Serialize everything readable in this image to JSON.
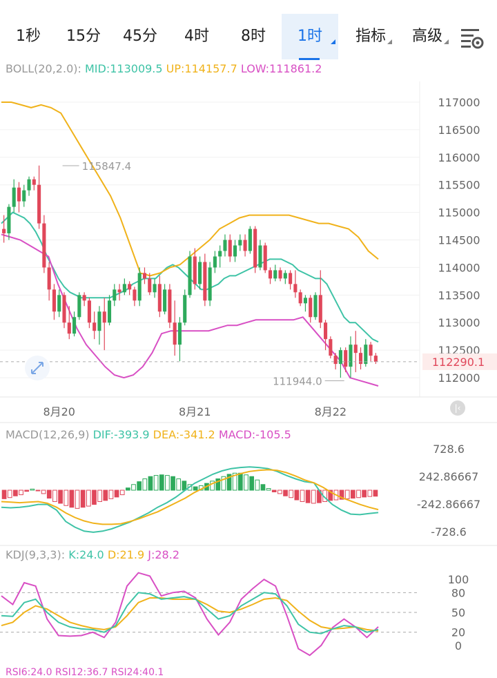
{
  "tabs": [
    {
      "label": "1秒",
      "active": false,
      "dropdown": false
    },
    {
      "label": "15分",
      "active": false,
      "dropdown": false
    },
    {
      "label": "45分",
      "active": false,
      "dropdown": false
    },
    {
      "label": "4时",
      "active": false,
      "dropdown": false
    },
    {
      "label": "8时",
      "active": false,
      "dropdown": false
    },
    {
      "label": "1时",
      "active": true,
      "dropdown": true
    },
    {
      "label": "指标",
      "active": false,
      "dropdown": true
    },
    {
      "label": "高级",
      "active": false,
      "dropdown": true
    }
  ],
  "settings_icon": "chart-settings-icon",
  "colors": {
    "up": "#2eaa5c",
    "down": "#e0475a",
    "mid": "#3ec3a6",
    "upper": "#f0b21a",
    "lower": "#d84fc4",
    "grey": "#999999",
    "accent": "#1a73e8"
  },
  "boll": {
    "name": "BOLL(20,2.0):",
    "mid": "MID:113009.5",
    "up": "UP:114157.7",
    "low": "LOW:111861.2"
  },
  "macd": {
    "name": "MACD(12,26,9)",
    "dif": "DIF:-393.9",
    "dea": "DEA:-341.2",
    "macd": "MACD:-105.5"
  },
  "kdj": {
    "name": "KDJ(9,3,3):",
    "k": "K:24.0",
    "d": "D:21.9",
    "j": "J:28.2"
  },
  "rsi": {
    "text": "RSI6:24.0  RSI12:36.7  RSI24:40.1"
  },
  "chart_data": [
    {
      "type": "candlestick",
      "title": "BOLL(20,2.0)",
      "y_ticks": [
        112000,
        112500,
        113000,
        113500,
        114000,
        114500,
        115000,
        115500,
        116000,
        116500,
        117000
      ],
      "ylim": [
        111650,
        117250
      ],
      "x_labels": [
        {
          "label": "8月20",
          "index": 11
        },
        {
          "label": "8月21",
          "index": 38
        },
        {
          "label": "8月22",
          "index": 65
        }
      ],
      "current_price": "112290.1",
      "current_value": 112290,
      "high_marker": {
        "label": "115847.4",
        "value": 115847.4,
        "index": 7
      },
      "low_marker": {
        "label": "111944.0",
        "value": 111944.0,
        "index": 68
      },
      "candles": [
        [
          114700,
          114950,
          114450,
          114620
        ],
        [
          114620,
          115150,
          114500,
          115100
        ],
        [
          115100,
          115600,
          115000,
          115450
        ],
        [
          115450,
          115550,
          115000,
          115200
        ],
        [
          115200,
          115500,
          115100,
          115400
        ],
        [
          115400,
          115650,
          115300,
          115600
        ],
        [
          115600,
          115650,
          115400,
          115500
        ],
        [
          115500,
          115850,
          114700,
          114800
        ],
        [
          114800,
          114950,
          113900,
          114000
        ],
        [
          114000,
          114100,
          113400,
          113600
        ],
        [
          113600,
          113700,
          113050,
          113200
        ],
        [
          113200,
          113600,
          113100,
          113500
        ],
        [
          113500,
          113550,
          112900,
          113000
        ],
        [
          113000,
          113300,
          112700,
          112800
        ],
        [
          112800,
          113200,
          112750,
          113100
        ],
        [
          113100,
          113550,
          113050,
          113500
        ],
        [
          113500,
          113550,
          113300,
          113400
        ],
        [
          113400,
          113450,
          112900,
          113000
        ],
        [
          113000,
          113200,
          112700,
          112850
        ],
        [
          112850,
          113300,
          112600,
          113200
        ],
        [
          113200,
          113450,
          112500,
          113000
        ],
        [
          113000,
          113500,
          112950,
          113400
        ],
        [
          113400,
          113700,
          113300,
          113600
        ],
        [
          113600,
          113700,
          113400,
          113550
        ],
        [
          113550,
          113800,
          113500,
          113700
        ],
        [
          113700,
          113750,
          113500,
          113600
        ],
        [
          113600,
          113650,
          113300,
          113400
        ],
        [
          113400,
          114000,
          113300,
          113900
        ],
        [
          113900,
          114000,
          113700,
          113800
        ],
        [
          113800,
          113900,
          113500,
          113550
        ],
        [
          113550,
          113800,
          113450,
          113700
        ],
        [
          113700,
          113850,
          113100,
          113200
        ],
        [
          113200,
          113700,
          113150,
          113600
        ],
        [
          113600,
          113700,
          112900,
          113000
        ],
        [
          113000,
          113400,
          112400,
          112600
        ],
        [
          112600,
          113100,
          112300,
          113000
        ],
        [
          113000,
          113600,
          112950,
          113500
        ],
        [
          113500,
          114300,
          113450,
          114200
        ],
        [
          114200,
          114350,
          113600,
          113700
        ],
        [
          113700,
          114200,
          113600,
          114100
        ],
        [
          114100,
          114250,
          113300,
          113400
        ],
        [
          113400,
          114100,
          113300,
          114000
        ],
        [
          114000,
          114300,
          113900,
          114200
        ],
        [
          114200,
          114400,
          114000,
          114300
        ],
        [
          114300,
          114600,
          114200,
          114500
        ],
        [
          114500,
          114600,
          114100,
          114200
        ],
        [
          114200,
          114500,
          114100,
          114400
        ],
        [
          114400,
          114600,
          114300,
          114500
        ],
        [
          114500,
          114600,
          114200,
          114300
        ],
        [
          114300,
          114750,
          114250,
          114700
        ],
        [
          114700,
          114750,
          113900,
          114000
        ],
        [
          114000,
          114500,
          113950,
          114400
        ],
        [
          114400,
          114450,
          113900,
          113950
        ],
        [
          113950,
          114000,
          113700,
          113800
        ],
        [
          113800,
          114050,
          113750,
          113950
        ],
        [
          113950,
          114000,
          113750,
          113800
        ],
        [
          113800,
          113950,
          113700,
          113900
        ],
        [
          113900,
          113950,
          113600,
          113700
        ],
        [
          113700,
          113950,
          113450,
          113550
        ],
        [
          113550,
          113600,
          113300,
          113350
        ],
        [
          113350,
          113500,
          113200,
          113450
        ],
        [
          113450,
          113500,
          113000,
          113100
        ],
        [
          113100,
          113550,
          113050,
          113500
        ],
        [
          113500,
          113950,
          112900,
          113000
        ],
        [
          113000,
          113050,
          112500,
          112700
        ],
        [
          112700,
          112750,
          112350,
          112400
        ],
        [
          112400,
          112450,
          112150,
          112250
        ],
        [
          112250,
          112550,
          112000,
          112500
        ],
        [
          112500,
          112550,
          112100,
          112200
        ],
        [
          112200,
          112750,
          112000,
          112600
        ],
        [
          112600,
          112850,
          112100,
          112450
        ],
        [
          112450,
          112550,
          112150,
          112250
        ],
        [
          112250,
          112700,
          112200,
          112600
        ],
        [
          112600,
          112650,
          112300,
          112400
        ],
        [
          112400,
          112450,
          112250,
          112290
        ]
      ],
      "mid_line": [
        114800,
        114900,
        115000,
        114950,
        114900,
        114800,
        114650,
        114450,
        114200,
        114000,
        113800,
        113650,
        113550,
        113500,
        113450,
        113450,
        113450,
        113450,
        113450,
        113450,
        113500,
        113550,
        113600,
        113700,
        113750,
        113800,
        113800,
        113800,
        113900,
        114000,
        114050,
        114000,
        113900,
        113800,
        113700,
        113600,
        113600,
        113650,
        113700,
        113800,
        113850,
        113850,
        113900,
        113950,
        114000,
        114050,
        114100,
        114150,
        114150,
        114150,
        114100,
        114050,
        113950,
        113900,
        113850,
        113800,
        113800,
        113700,
        113500,
        113300,
        113100,
        113000,
        113000,
        112900,
        112800,
        112700,
        112650
      ],
      "upper_line": [
        117000,
        117000,
        116950,
        116900,
        116950,
        116900,
        116800,
        116500,
        116200,
        115900,
        115600,
        115300,
        114900,
        114400,
        113900,
        113850,
        113900,
        114000,
        114050,
        114200,
        114350,
        114500,
        114700,
        114800,
        114900,
        114950,
        114950,
        114950,
        114950,
        114950,
        114900,
        114850,
        114800,
        114800,
        114750,
        114700,
        114550,
        114300,
        114150
      ],
      "lower_line": [
        114600,
        114550,
        114500,
        114400,
        114300,
        114200,
        113700,
        113300,
        112900,
        112600,
        112400,
        112200,
        112050,
        112000,
        112050,
        112200,
        112450,
        112800,
        112850,
        112850,
        112850,
        112850,
        112850,
        112900,
        112950,
        112950,
        113000,
        113050,
        113050,
        113050,
        113050,
        113050,
        113100,
        112900,
        112700,
        112500,
        112300,
        112000,
        111950,
        111900,
        111850
      ]
    },
    {
      "type": "bar+line",
      "title": "MACD(12,26,9)",
      "y_ticks": [
        728.6,
        242.86667,
        -242.86667,
        -728.6
      ],
      "y_tick_labels": [
        "728.6",
        "242.86667",
        "-242.86667",
        "-728.6"
      ],
      "ylim": [
        -850,
        850
      ],
      "macd_bars": [
        -150,
        -130,
        -100,
        -80,
        -20,
        20,
        -10,
        -60,
        -140,
        -200,
        -230,
        -270,
        -300,
        -320,
        -300,
        -280,
        -250,
        -200,
        -180,
        -150,
        -120,
        -80,
        40,
        100,
        150,
        200,
        240,
        260,
        270,
        260,
        240,
        200,
        160,
        100,
        60,
        80,
        120,
        160,
        200,
        240,
        280,
        300,
        300,
        270,
        240,
        180,
        100,
        30,
        -30,
        -60,
        -100,
        -130,
        -170,
        -200,
        -220,
        -230,
        -220,
        -200,
        -180,
        -170,
        -160,
        -150,
        -140,
        -130,
        -120,
        -110,
        -105.5
      ],
      "dif": [
        -300,
        -310,
        -300,
        -280,
        -250,
        -250,
        -350,
        -550,
        -650,
        -720,
        -740,
        -720,
        -680,
        -620,
        -560,
        -480,
        -400,
        -300,
        -220,
        -120,
        0,
        120,
        200,
        280,
        340,
        380,
        400,
        410,
        400,
        380,
        330,
        260,
        200,
        150,
        130,
        -100,
        -250,
        -350,
        -420,
        -430,
        -410,
        -393.9
      ],
      "dea": [
        -200,
        -210,
        -220,
        -210,
        -200,
        -230,
        -300,
        -400,
        -480,
        -540,
        -580,
        -600,
        -600,
        -590,
        -550,
        -500,
        -440,
        -380,
        -300,
        -220,
        -140,
        -40,
        40,
        120,
        180,
        240,
        290,
        330,
        350,
        360,
        350,
        310,
        250,
        180,
        130,
        50,
        -50,
        -130,
        -190,
        -250,
        -300,
        -341.2
      ]
    },
    {
      "type": "line",
      "title": "KDJ(9,3,3)",
      "y_ticks": [
        100,
        80,
        50,
        20,
        0
      ],
      "ylim": [
        -18,
        118
      ],
      "k": [
        45,
        44,
        65,
        70,
        50,
        35,
        28,
        25,
        24,
        20,
        30,
        60,
        80,
        78,
        70,
        72,
        74,
        70,
        55,
        40,
        45,
        60,
        70,
        80,
        78,
        60,
        32,
        20,
        18,
        25,
        30,
        28,
        20,
        24.0
      ],
      "d": [
        30,
        35,
        50,
        60,
        55,
        45,
        35,
        30,
        26,
        24,
        28,
        45,
        65,
        72,
        72,
        70,
        70,
        70,
        62,
        52,
        50,
        55,
        62,
        70,
        72,
        68,
        52,
        38,
        28,
        25,
        26,
        28,
        24,
        21.9
      ],
      "j": [
        75,
        62,
        95,
        90,
        40,
        15,
        14,
        15,
        20,
        12,
        35,
        90,
        110,
        105,
        75,
        80,
        82,
        72,
        40,
        16,
        35,
        70,
        86,
        100,
        90,
        45,
        -5,
        -15,
        0,
        27,
        40,
        28,
        12,
        28.2
      ]
    }
  ]
}
